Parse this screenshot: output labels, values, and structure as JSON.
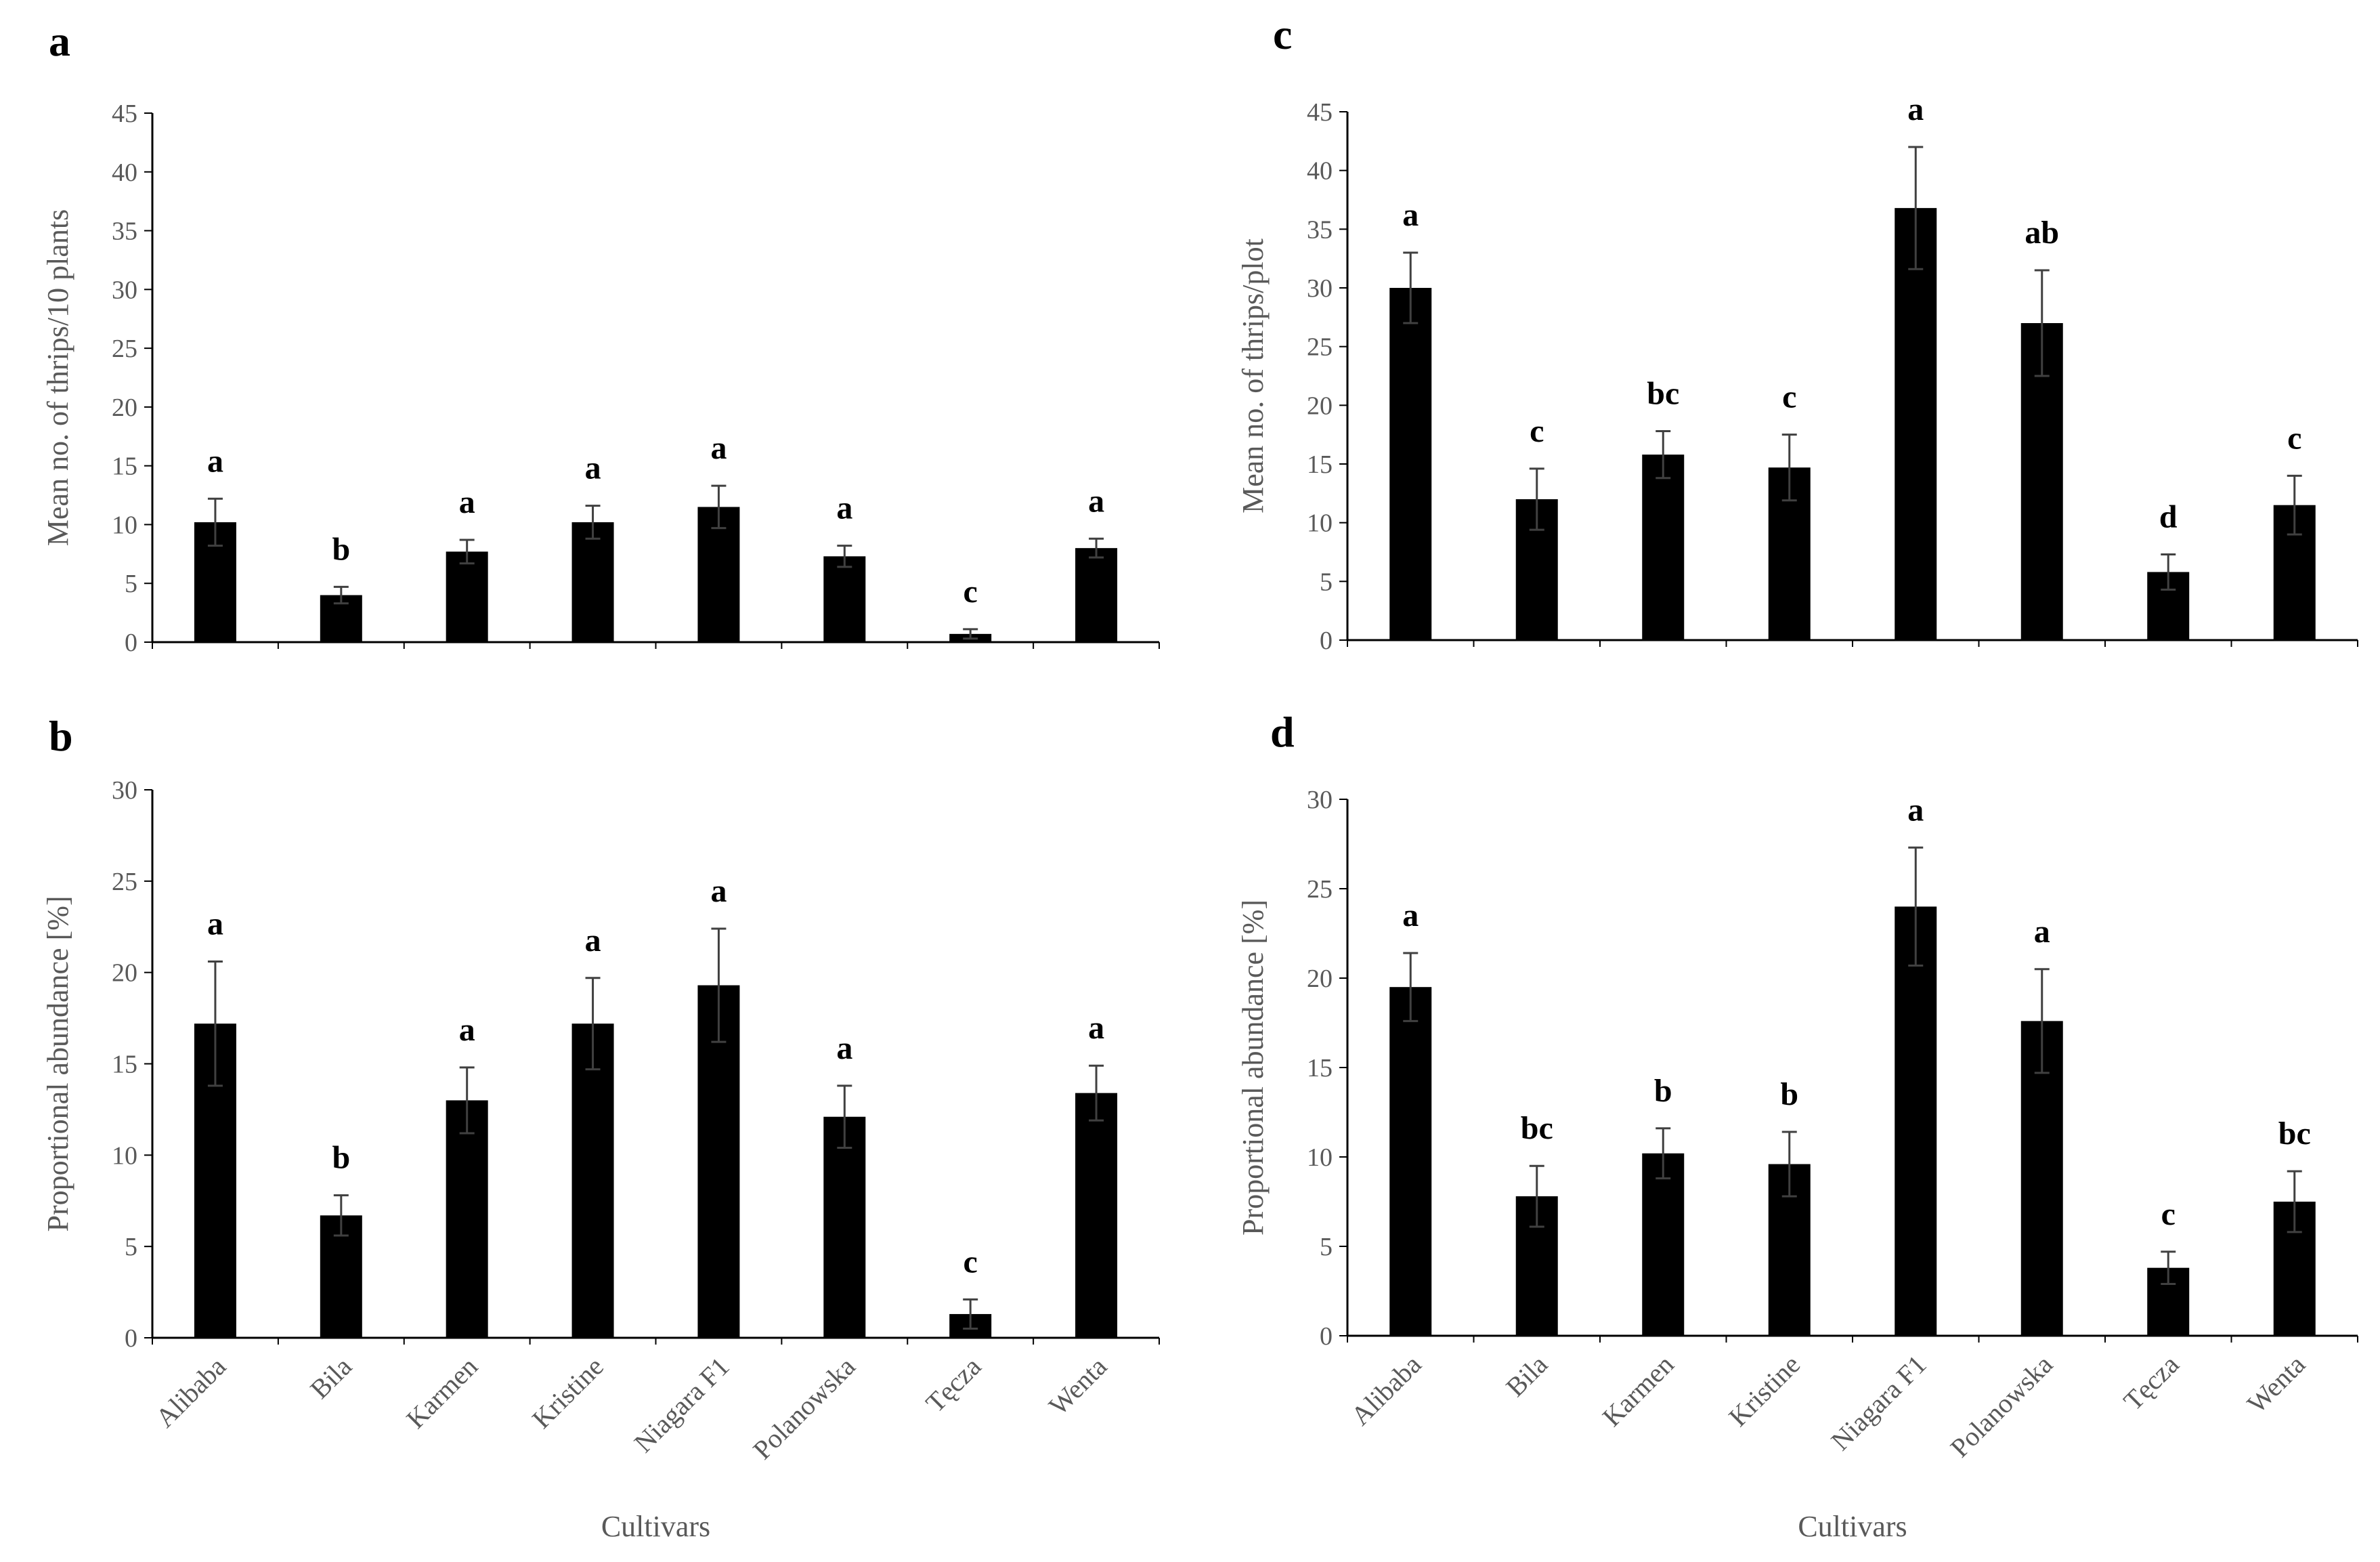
{
  "chart_data": [
    {
      "panel": "a",
      "type": "bar",
      "ylabel": "Mean no. of thrips/10 plants",
      "xlabel": "",
      "ylim": [
        0,
        45
      ],
      "yticks": [
        0,
        5,
        10,
        15,
        20,
        25,
        30,
        35,
        40,
        45
      ],
      "categories": [
        "Alibaba",
        "Bila",
        "Karmen",
        "Kristine",
        "Niagara F1",
        "Polanowska",
        "Tęcza",
        "Wenta"
      ],
      "values": [
        10.2,
        4.0,
        7.7,
        10.2,
        11.5,
        7.3,
        0.7,
        8.0
      ],
      "errors": [
        2.0,
        0.7,
        1.0,
        1.4,
        1.8,
        0.9,
        0.4,
        0.8
      ],
      "letters": [
        "a",
        "b",
        "a",
        "a",
        "a",
        "a",
        "c",
        "a"
      ],
      "show_categories": false
    },
    {
      "panel": "b",
      "type": "bar",
      "ylabel": "Proportional abundance [%]",
      "xlabel": "Cultivars",
      "ylim": [
        0,
        30
      ],
      "yticks": [
        0,
        5,
        10,
        15,
        20,
        25,
        30
      ],
      "categories": [
        "Alibaba",
        "Bila",
        "Karmen",
        "Kristine",
        "Niagara F1",
        "Polanowska",
        "Tęcza",
        "Wenta"
      ],
      "values": [
        17.2,
        6.7,
        13.0,
        17.2,
        19.3,
        12.1,
        1.3,
        13.4
      ],
      "errors": [
        3.4,
        1.1,
        1.8,
        2.5,
        3.1,
        1.7,
        0.8,
        1.5
      ],
      "letters": [
        "a",
        "b",
        "a",
        "a",
        "a",
        "a",
        "c",
        "a"
      ],
      "show_categories": true
    },
    {
      "panel": "c",
      "type": "bar",
      "ylabel": "Mean no. of thrips/plot",
      "xlabel": "",
      "ylim": [
        0,
        45
      ],
      "yticks": [
        0,
        5,
        10,
        15,
        20,
        25,
        30,
        35,
        40,
        45
      ],
      "categories": [
        "Alibaba",
        "Bila",
        "Karmen",
        "Kristine",
        "Niagara F1",
        "Polanowska",
        "Tęcza",
        "Wenta"
      ],
      "values": [
        30.0,
        12.0,
        15.8,
        14.7,
        36.8,
        27.0,
        5.8,
        11.5
      ],
      "errors": [
        3.0,
        2.6,
        2.0,
        2.8,
        5.2,
        4.5,
        1.5,
        2.5
      ],
      "letters": [
        "a",
        "c",
        "bc",
        "c",
        "a",
        "ab",
        "d",
        "c"
      ],
      "show_categories": false
    },
    {
      "panel": "d",
      "type": "bar",
      "ylabel": "Proportional abundance [%]",
      "xlabel": "Cultivars",
      "ylim": [
        0,
        30
      ],
      "yticks": [
        0,
        5,
        10,
        15,
        20,
        25,
        30
      ],
      "categories": [
        "Alibaba",
        "Bila",
        "Karmen",
        "Kristine",
        "Niagara F1",
        "Polanowska",
        "Tęcza",
        "Wenta"
      ],
      "values": [
        19.5,
        7.8,
        10.2,
        9.6,
        24.0,
        17.6,
        3.8,
        7.5
      ],
      "errors": [
        1.9,
        1.7,
        1.4,
        1.8,
        3.3,
        2.9,
        0.9,
        1.7
      ],
      "letters": [
        "a",
        "bc",
        "b",
        "b",
        "a",
        "a",
        "c",
        "bc"
      ],
      "show_categories": true
    }
  ]
}
